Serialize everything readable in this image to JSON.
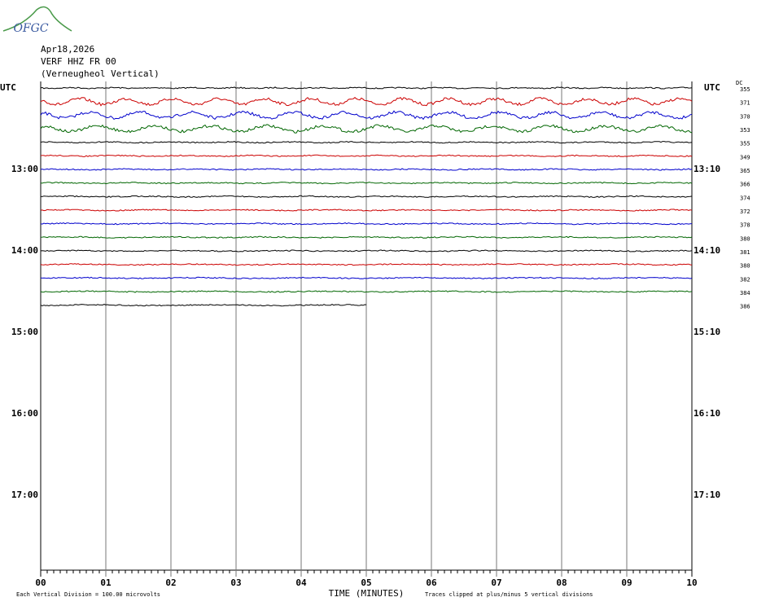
{
  "header": {
    "logo": "OFGC",
    "date": "Apr18,2026",
    "station": "VERF HHZ FR 00",
    "location": "(Verneugheol Vertical)"
  },
  "chart_data": {
    "type": "helicorder",
    "xlabel": "TIME (MINUTES)",
    "note_left": "Each Vertical Division =  100.00 microvolts",
    "note_right": "Traces clipped at plus/minus 5 vertical divisions",
    "dc_label": "DC",
    "xlim": [
      0,
      10
    ],
    "xticks": [
      {
        "value": 0,
        "label": "00"
      },
      {
        "value": 1,
        "label": "01"
      },
      {
        "value": 2,
        "label": "02"
      },
      {
        "value": 3,
        "label": "03"
      },
      {
        "value": 4,
        "label": "04"
      },
      {
        "value": 5,
        "label": "05"
      },
      {
        "value": 6,
        "label": "06"
      },
      {
        "value": 7,
        "label": "07"
      },
      {
        "value": 8,
        "label": "08"
      },
      {
        "value": 9,
        "label": "09"
      },
      10
    ],
    "left_labels": [
      "UTC",
      "13:00",
      "14:00",
      "15:00",
      "16:00",
      "17:00"
    ],
    "right_labels": [
      "UTC",
      "13:10",
      "14:10",
      "15:10",
      "16:10",
      "17:10"
    ],
    "rows": [
      {
        "color": "#000000",
        "dc": 355,
        "end": 10
      },
      {
        "color": "#cc0000",
        "dc": 371,
        "end": 10
      },
      {
        "color": "#0000cc",
        "dc": 370,
        "end": 10
      },
      {
        "color": "#006600",
        "dc": 353,
        "end": 10
      },
      {
        "color": "#000000",
        "dc": 355,
        "end": 10
      },
      {
        "color": "#cc0000",
        "dc": 349,
        "end": 10
      },
      {
        "color": "#0000cc",
        "dc": 365,
        "end": 10
      },
      {
        "color": "#006600",
        "dc": 366,
        "end": 10
      },
      {
        "color": "#000000",
        "dc": 374,
        "end": 10
      },
      {
        "color": "#cc0000",
        "dc": 372,
        "end": 10
      },
      {
        "color": "#0000cc",
        "dc": 378,
        "end": 10
      },
      {
        "color": "#006600",
        "dc": 380,
        "end": 10
      },
      {
        "color": "#000000",
        "dc": 381,
        "end": 10
      },
      {
        "color": "#cc0000",
        "dc": 380,
        "end": 10
      },
      {
        "color": "#0000cc",
        "dc": 382,
        "end": 10
      },
      {
        "color": "#006600",
        "dc": 384,
        "end": 10
      },
      {
        "color": "#000000",
        "dc": 386,
        "end": 5
      }
    ]
  }
}
